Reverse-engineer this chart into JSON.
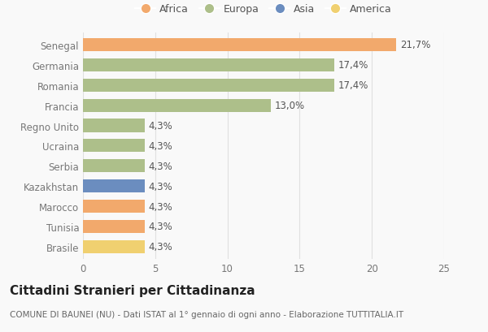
{
  "categories": [
    "Senegal",
    "Germania",
    "Romania",
    "Francia",
    "Regno Unito",
    "Ucraina",
    "Serbia",
    "Kazakhstan",
    "Marocco",
    "Tunisia",
    "Brasile"
  ],
  "values": [
    21.7,
    17.4,
    17.4,
    13.0,
    4.3,
    4.3,
    4.3,
    4.3,
    4.3,
    4.3,
    4.3
  ],
  "labels": [
    "21,7%",
    "17,4%",
    "17,4%",
    "13,0%",
    "4,3%",
    "4,3%",
    "4,3%",
    "4,3%",
    "4,3%",
    "4,3%",
    "4,3%"
  ],
  "colors": [
    "#F2A96C",
    "#ADBF8A",
    "#ADBF8A",
    "#ADBF8A",
    "#ADBF8A",
    "#ADBF8A",
    "#ADBF8A",
    "#6B8DBF",
    "#F2A96C",
    "#F2A96C",
    "#F0D070"
  ],
  "legend_labels": [
    "Africa",
    "Europa",
    "Asia",
    "America"
  ],
  "legend_colors": [
    "#F2A96C",
    "#ADBF8A",
    "#6B8DBF",
    "#F0D070"
  ],
  "title": "Cittadini Stranieri per Cittadinanza",
  "subtitle": "COMUNE DI BAUNEI (NU) - Dati ISTAT al 1° gennaio di ogni anno - Elaborazione TUTTITALIA.IT",
  "xlim": [
    0,
    25
  ],
  "xticks": [
    0,
    5,
    10,
    15,
    20,
    25
  ],
  "background_color": "#f9f9f9",
  "grid_color": "#e0e0e0",
  "label_fontsize": 8.5,
  "tick_fontsize": 8.5,
  "title_fontsize": 11,
  "subtitle_fontsize": 7.5
}
